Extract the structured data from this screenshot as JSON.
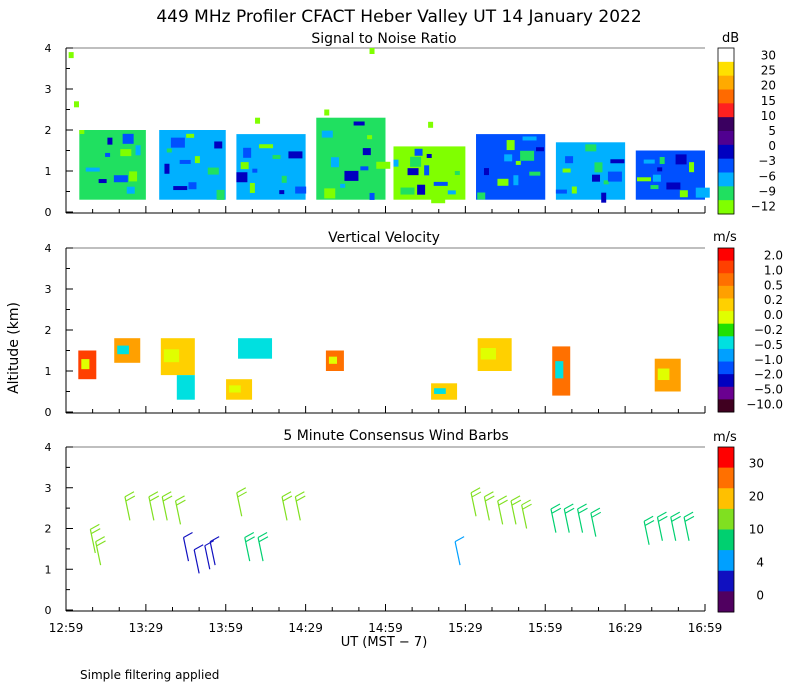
{
  "title": "449 MHz Profiler CFACT Heber Valley UT 14 January 2022",
  "ylabel": "Altitude (km)",
  "xlabel": "UT  (MST − 7)",
  "footnote": "Simple filtering applied",
  "x_tick_labels": [
    "12:59",
    "13:29",
    "13:59",
    "14:29",
    "14:59",
    "15:29",
    "15:59",
    "16:29",
    "16:59"
  ],
  "y_tick_labels": [
    "0",
    "1",
    "2",
    "3",
    "4"
  ],
  "colors": {
    "snr": [
      "#80ff00",
      "#20e060",
      "#00b0ff",
      "#0050ff",
      "#0000c0",
      "#500090",
      "#3a0060",
      "#ff2020",
      "#ff6a00",
      "#ffaa00",
      "#ffe000",
      "#ffffff"
    ],
    "vv": [
      "#400020",
      "#6a0090",
      "#0000c0",
      "#0050ff",
      "#00a0ff",
      "#00e0e0",
      "#20e000",
      "#e0ff00",
      "#ffd000",
      "#ffa000",
      "#ff7000",
      "#ff4000",
      "#ff0000"
    ],
    "wind": [
      "#500060",
      "#1010c0",
      "#00a0ff",
      "#00d070",
      "#80e020",
      "#ffc000",
      "#ff7000",
      "#ff0000"
    ]
  },
  "chart_data": [
    {
      "type": "heatmap",
      "title": "Signal to Noise Ratio",
      "colorbar_unit": "dB",
      "colorbar_labels": [
        "30",
        "25",
        "20",
        "15",
        "10",
        "5",
        "0",
        "−3",
        "−6",
        "−9",
        "−12"
      ],
      "xlim": [
        "12:59",
        "16:59"
      ],
      "ylim": [
        0,
        4
      ],
      "ylabel": "Altitude (km)",
      "blocks": [
        {
          "start": "13:04",
          "end": "13:29",
          "bottom_km": 0.3,
          "top_km": 2.0,
          "dominant_db": -9
        },
        {
          "start": "13:34",
          "end": "13:59",
          "bottom_km": 0.3,
          "top_km": 2.0,
          "dominant_db": -6
        },
        {
          "start": "14:03",
          "end": "14:29",
          "bottom_km": 0.3,
          "top_km": 1.9,
          "dominant_db": -6
        },
        {
          "start": "14:33",
          "end": "14:59",
          "bottom_km": 0.3,
          "top_km": 2.3,
          "dominant_db": -9
        },
        {
          "start": "15:02",
          "end": "15:29",
          "bottom_km": 0.3,
          "top_km": 1.6,
          "dominant_db": -12
        },
        {
          "start": "15:33",
          "end": "15:59",
          "bottom_km": 0.3,
          "top_km": 1.9,
          "dominant_db": -3
        },
        {
          "start": "16:03",
          "end": "16:29",
          "bottom_km": 0.3,
          "top_km": 1.7,
          "dominant_db": -6
        },
        {
          "start": "16:33",
          "end": "16:59",
          "bottom_km": 0.3,
          "top_km": 1.5,
          "dominant_db": -3
        }
      ]
    },
    {
      "type": "heatmap",
      "title": "Vertical Velocity",
      "colorbar_unit": "m/s",
      "colorbar_labels": [
        "2.0",
        "1.0",
        "0.5",
        "0.2",
        "0.0",
        "−0.2",
        "−0.5",
        "−1.0",
        "−2.0",
        "−5.0",
        "−10.0"
      ],
      "xlim": [
        "12:59",
        "16:59"
      ],
      "ylim": [
        0,
        4
      ],
      "ylabel": "Altitude (km)",
      "patches": [
        {
          "time": "13:07",
          "km_low": 0.8,
          "km_high": 1.5,
          "value_ms": 2.0
        },
        {
          "time": "13:22",
          "km_low": 1.2,
          "km_high": 1.8,
          "value_ms": 0.5
        },
        {
          "time": "13:41",
          "km_low": 0.9,
          "km_high": 1.8,
          "value_ms": 0.2
        },
        {
          "time": "13:44",
          "km_low": 0.3,
          "km_high": 0.9,
          "value_ms": -0.5
        },
        {
          "time": "14:04",
          "km_low": 0.3,
          "km_high": 0.8,
          "value_ms": 0.2
        },
        {
          "time": "14:10",
          "km_low": 1.3,
          "km_high": 1.8,
          "value_ms": -0.5
        },
        {
          "time": "14:40",
          "km_low": 1.0,
          "km_high": 1.5,
          "value_ms": 1.0
        },
        {
          "time": "15:21",
          "km_low": 0.3,
          "km_high": 0.7,
          "value_ms": 0.2
        },
        {
          "time": "15:40",
          "km_low": 1.0,
          "km_high": 1.8,
          "value_ms": 0.2
        },
        {
          "time": "16:05",
          "km_low": 0.4,
          "km_high": 1.6,
          "value_ms": 1.0
        },
        {
          "time": "16:45",
          "km_low": 0.5,
          "km_high": 1.3,
          "value_ms": 0.5
        }
      ]
    },
    {
      "type": "scatter",
      "title": "5 Minute Consensus Wind Barbs",
      "colorbar_unit": "m/s",
      "colorbar_labels": [
        "30",
        "20",
        "10",
        "4",
        "0"
      ],
      "xlim": [
        "12:59",
        "16:59"
      ],
      "ylim": [
        0,
        4
      ],
      "ylabel": "Altitude (km)",
      "barbs": [
        {
          "time": "13:10",
          "km": 1.4,
          "speed_ms": 10
        },
        {
          "time": "13:12",
          "km": 1.1,
          "speed_ms": 10
        },
        {
          "time": "13:23",
          "km": 2.2,
          "speed_ms": 10
        },
        {
          "time": "13:32",
          "km": 2.2,
          "speed_ms": 10
        },
        {
          "time": "13:37",
          "km": 2.2,
          "speed_ms": 10
        },
        {
          "time": "13:42",
          "km": 2.1,
          "speed_ms": 10
        },
        {
          "time": "13:45",
          "km": 1.2,
          "speed_ms": 2
        },
        {
          "time": "13:49",
          "km": 0.9,
          "speed_ms": 2
        },
        {
          "time": "13:53",
          "km": 1.0,
          "speed_ms": 2
        },
        {
          "time": "13:55",
          "km": 1.1,
          "speed_ms": 2
        },
        {
          "time": "14:05",
          "km": 2.3,
          "speed_ms": 12
        },
        {
          "time": "14:08",
          "km": 1.2,
          "speed_ms": 8
        },
        {
          "time": "14:13",
          "km": 1.2,
          "speed_ms": 8
        },
        {
          "time": "14:22",
          "km": 2.2,
          "speed_ms": 12
        },
        {
          "time": "14:27",
          "km": 2.2,
          "speed_ms": 12
        },
        {
          "time": "15:27",
          "km": 1.1,
          "speed_ms": 4
        },
        {
          "time": "15:33",
          "km": 2.3,
          "speed_ms": 12
        },
        {
          "time": "15:38",
          "km": 2.2,
          "speed_ms": 12
        },
        {
          "time": "15:43",
          "km": 2.1,
          "speed_ms": 10
        },
        {
          "time": "15:48",
          "km": 2.1,
          "speed_ms": 10
        },
        {
          "time": "15:52",
          "km": 2.0,
          "speed_ms": 10
        },
        {
          "time": "16:03",
          "km": 1.9,
          "speed_ms": 9
        },
        {
          "time": "16:08",
          "km": 1.9,
          "speed_ms": 9
        },
        {
          "time": "16:13",
          "km": 1.9,
          "speed_ms": 9
        },
        {
          "time": "16:18",
          "km": 1.8,
          "speed_ms": 9
        },
        {
          "time": "16:38",
          "km": 1.6,
          "speed_ms": 8
        },
        {
          "time": "16:43",
          "km": 1.7,
          "speed_ms": 8
        },
        {
          "time": "16:48",
          "km": 1.7,
          "speed_ms": 8
        },
        {
          "time": "16:53",
          "km": 1.7,
          "speed_ms": 8
        }
      ]
    }
  ]
}
